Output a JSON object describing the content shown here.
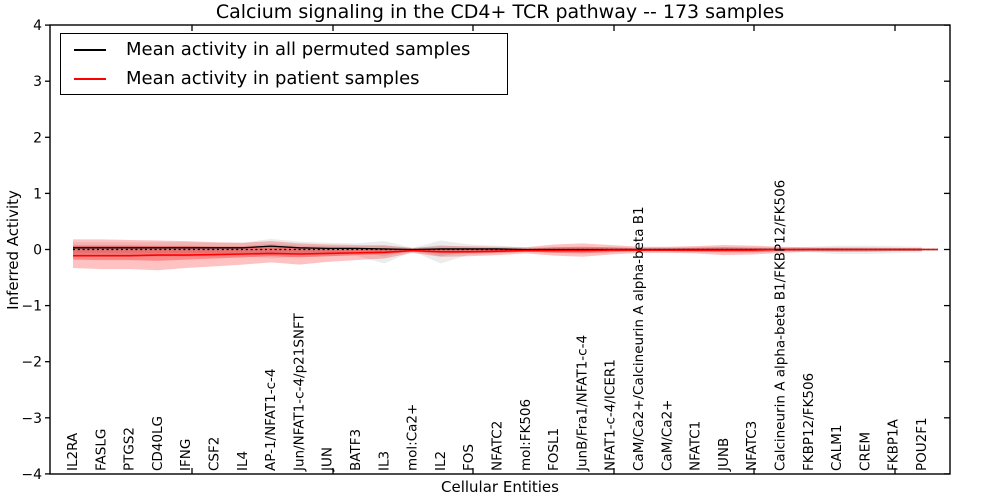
{
  "legend": {
    "entries": [
      {
        "label": "Mean activity in all permuted samples",
        "color": "#000000"
      },
      {
        "label": "Mean activity in patient samples",
        "color": "#ff0000"
      }
    ]
  },
  "chart_data": {
    "type": "line",
    "title": "Calcium signaling in the CD4+ TCR pathway -- 173 samples",
    "xlabel": "Cellular Entities",
    "ylabel": "Inferred Activity",
    "ylim": [
      -4,
      4
    ],
    "yticks": [
      -4,
      -3,
      -2,
      -1,
      0,
      1,
      2,
      3,
      4
    ],
    "grid": false,
    "legend_position": "upper left",
    "categories": [
      "IL2RA",
      "FASLG",
      "PTGS2",
      "CD40LG",
      "IFNG",
      "CSF2",
      "IL4",
      "AP-1/NFAT1-c-4",
      "Jun/NFAT1-c-4/p21SNFT",
      "JUN",
      "BATF3",
      "IL3",
      "mol:Ca2+",
      "IL2",
      "FOS",
      "NFATC2",
      "mol:FK506",
      "FOSL1",
      "JunB/Fra1/NFAT1-c-4",
      "NFAT1-c-4/ICER1",
      "CaM/Ca2+/Calcineurin A alpha-beta B1",
      "CaM/Ca2+",
      "NFATC1",
      "JUNB",
      "NFATC3",
      "Calcineurin A alpha-beta B1/FKBP12/FK506",
      "FKBP12/FK506",
      "CALM1",
      "CREM",
      "FKBP1A",
      "POU2F1"
    ],
    "reference_line": {
      "value": 0,
      "style": "dotted",
      "color": "#000000"
    },
    "series": [
      {
        "name": "Mean activity in all permuted samples",
        "color": "#000000",
        "band_color": "#888888",
        "mean": [
          0.03,
          0.03,
          0.03,
          0.03,
          0.03,
          0.03,
          0.03,
          0.06,
          0.03,
          0.02,
          0.02,
          0.01,
          0.0,
          0.01,
          0.01,
          0.01,
          0.0,
          0.0,
          0.0,
          0.0,
          0.0,
          0.0,
          0.0,
          0.0,
          0.0,
          0.0,
          0.0,
          0.0,
          0.0,
          0.0,
          0.0
        ],
        "outer_high": [
          0.13,
          0.13,
          0.13,
          0.13,
          0.13,
          0.12,
          0.12,
          0.19,
          0.14,
          0.12,
          0.11,
          0.15,
          0.03,
          0.16,
          0.09,
          0.07,
          0.04,
          0.05,
          0.05,
          0.04,
          0.04,
          0.04,
          0.05,
          0.05,
          0.05,
          0.04,
          0.05,
          0.07,
          0.07,
          0.06,
          0.05
        ],
        "outer_low": [
          -0.13,
          -0.13,
          -0.13,
          -0.13,
          -0.13,
          -0.12,
          -0.12,
          -0.16,
          -0.13,
          -0.12,
          -0.11,
          -0.25,
          -0.03,
          -0.25,
          -0.09,
          -0.07,
          -0.04,
          -0.05,
          -0.05,
          -0.04,
          -0.04,
          -0.04,
          -0.05,
          -0.05,
          -0.05,
          -0.04,
          -0.05,
          -0.08,
          -0.08,
          -0.07,
          -0.05
        ],
        "inner_high": [
          0.07,
          0.07,
          0.07,
          0.07,
          0.07,
          0.06,
          0.06,
          0.1,
          0.07,
          0.06,
          0.05,
          0.08,
          0.02,
          0.08,
          0.04,
          0.03,
          0.02,
          0.02,
          0.02,
          0.02,
          0.02,
          0.02,
          0.02,
          0.02,
          0.02,
          0.02,
          0.02,
          0.04,
          0.04,
          0.03,
          0.02
        ],
        "inner_low": [
          -0.07,
          -0.07,
          -0.07,
          -0.07,
          -0.07,
          -0.06,
          -0.06,
          -0.08,
          -0.07,
          -0.06,
          -0.05,
          -0.12,
          -0.02,
          -0.12,
          -0.04,
          -0.03,
          -0.02,
          -0.02,
          -0.02,
          -0.02,
          -0.02,
          -0.02,
          -0.02,
          -0.02,
          -0.02,
          -0.02,
          -0.02,
          -0.04,
          -0.04,
          -0.03,
          -0.02
        ]
      },
      {
        "name": "Mean activity in patient samples",
        "color": "#ff0000",
        "band_color": "#ff0000",
        "mean": [
          -0.11,
          -0.11,
          -0.11,
          -0.1,
          -0.1,
          -0.09,
          -0.08,
          -0.07,
          -0.08,
          -0.07,
          -0.06,
          -0.05,
          -0.02,
          -0.04,
          -0.04,
          -0.03,
          -0.02,
          -0.02,
          -0.02,
          -0.01,
          -0.01,
          -0.01,
          -0.01,
          -0.01,
          -0.01,
          0.0,
          0.0,
          0.0,
          0.0,
          0.0,
          0.0
        ],
        "outer_high": [
          0.18,
          0.18,
          0.17,
          0.16,
          0.15,
          0.13,
          0.12,
          0.15,
          0.11,
          0.09,
          0.08,
          0.07,
          0.03,
          0.06,
          0.06,
          0.05,
          0.04,
          0.09,
          0.11,
          0.08,
          0.05,
          0.05,
          0.06,
          0.08,
          0.07,
          0.05,
          0.04,
          0.03,
          0.03,
          0.03,
          0.03
        ],
        "outer_low": [
          -0.33,
          -0.35,
          -0.35,
          -0.37,
          -0.33,
          -0.3,
          -0.27,
          -0.23,
          -0.27,
          -0.22,
          -0.19,
          -0.16,
          -0.06,
          -0.13,
          -0.12,
          -0.1,
          -0.07,
          -0.11,
          -0.13,
          -0.09,
          -0.06,
          -0.06,
          -0.07,
          -0.1,
          -0.09,
          -0.06,
          -0.04,
          -0.04,
          -0.04,
          -0.03,
          -0.03
        ],
        "inner_high": [
          0.07,
          0.07,
          0.07,
          0.06,
          0.06,
          0.05,
          0.05,
          0.07,
          0.04,
          0.03,
          0.03,
          0.02,
          0.01,
          0.02,
          0.02,
          0.02,
          0.01,
          0.04,
          0.05,
          0.04,
          0.02,
          0.02,
          0.03,
          0.04,
          0.03,
          0.02,
          0.02,
          0.02,
          0.01,
          0.01,
          0.01
        ],
        "inner_low": [
          -0.18,
          -0.19,
          -0.19,
          -0.2,
          -0.18,
          -0.16,
          -0.14,
          -0.12,
          -0.14,
          -0.12,
          -0.1,
          -0.08,
          -0.04,
          -0.07,
          -0.07,
          -0.06,
          -0.04,
          -0.06,
          -0.07,
          -0.05,
          -0.03,
          -0.03,
          -0.04,
          -0.05,
          -0.05,
          -0.03,
          -0.02,
          -0.02,
          -0.02,
          -0.02,
          -0.02
        ]
      }
    ]
  }
}
